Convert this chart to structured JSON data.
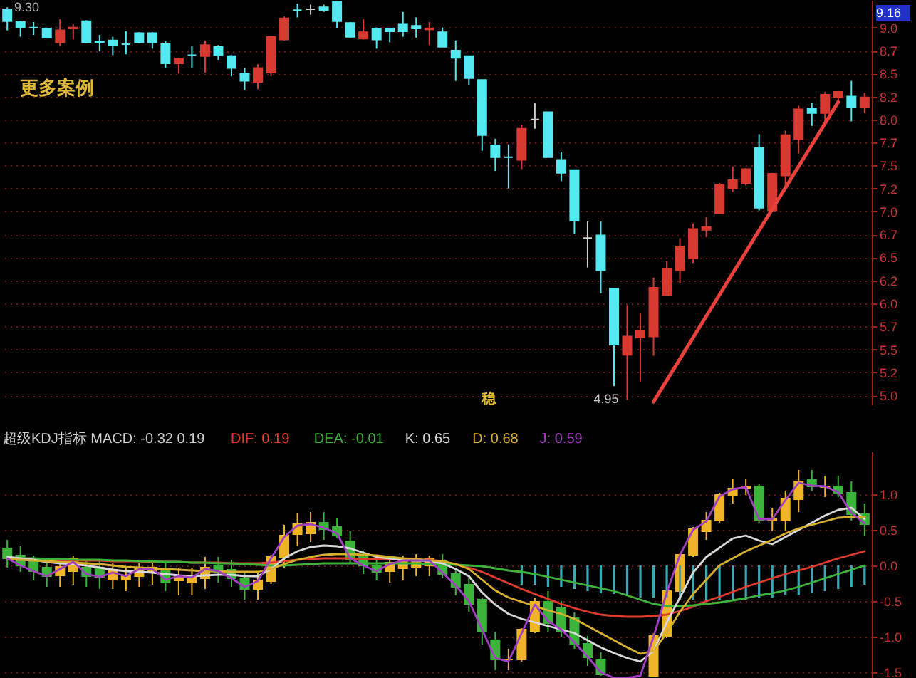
{
  "chart_data": [
    {
      "type": "candlestick",
      "categories": [
        null,
        null,
        null,
        null,
        null,
        null,
        null,
        null,
        null,
        null,
        null,
        null,
        null,
        null,
        null,
        null,
        null,
        null,
        null,
        null,
        null,
        null,
        null,
        null,
        null,
        null,
        null,
        null,
        null,
        null,
        null,
        null,
        null,
        null,
        null,
        null,
        null,
        null,
        null,
        null,
        null,
        null,
        null,
        null,
        null,
        null,
        null,
        null,
        null,
        null,
        null,
        null,
        null,
        null,
        null,
        null,
        null,
        null,
        null,
        null,
        null,
        null,
        null,
        null,
        null,
        null
      ],
      "ohlc": [
        [
          9.2,
          9.22,
          8.97,
          9.07
        ],
        [
          9.06,
          9.07,
          8.9,
          9.0
        ],
        [
          9.0,
          9.06,
          8.92,
          9.0
        ],
        [
          8.99,
          9.0,
          8.88,
          8.89
        ],
        [
          8.84,
          9.09,
          8.8,
          8.97
        ],
        [
          8.99,
          9.04,
          8.87,
          9.0
        ],
        [
          9.07,
          9.08,
          8.83,
          8.84
        ],
        [
          8.85,
          8.92,
          8.74,
          8.84
        ],
        [
          8.86,
          8.9,
          8.7,
          8.81
        ],
        [
          8.82,
          8.96,
          8.71,
          8.82
        ],
        [
          8.94,
          8.95,
          8.83,
          8.84
        ],
        [
          8.94,
          8.95,
          8.77,
          8.84
        ],
        [
          8.82,
          8.85,
          8.56,
          8.61
        ],
        [
          8.61,
          8.67,
          8.5,
          8.66
        ],
        [
          8.7,
          8.8,
          8.56,
          8.7
        ],
        [
          8.69,
          8.86,
          8.51,
          8.81
        ],
        [
          8.79,
          8.81,
          8.65,
          8.7
        ],
        [
          8.69,
          8.7,
          8.47,
          8.56
        ],
        [
          8.5,
          8.56,
          8.32,
          8.42
        ],
        [
          8.41,
          8.6,
          8.33,
          8.56
        ],
        [
          8.51,
          8.9,
          8.47,
          8.9
        ],
        [
          8.87,
          9.12,
          8.86,
          9.1
        ],
        [
          9.19,
          9.26,
          9.11,
          9.19
        ],
        [
          9.2,
          9.25,
          9.14,
          9.2
        ],
        [
          9.22,
          9.25,
          9.17,
          9.19
        ],
        [
          9.28,
          9.29,
          8.99,
          9.07
        ],
        [
          9.05,
          9.06,
          8.89,
          8.9
        ],
        [
          8.88,
          9.09,
          8.87,
          8.95
        ],
        [
          8.99,
          9.0,
          8.77,
          8.87
        ],
        [
          8.99,
          9.0,
          8.84,
          8.96
        ],
        [
          9.04,
          9.17,
          8.9,
          8.96
        ],
        [
          9.02,
          9.11,
          8.89,
          8.99
        ],
        [
          8.98,
          9.06,
          8.81,
          8.99
        ],
        [
          8.95,
          9.0,
          8.79,
          8.79
        ],
        [
          8.75,
          8.86,
          8.42,
          8.67
        ],
        [
          8.69,
          8.69,
          8.37,
          8.45
        ],
        [
          8.43,
          8.43,
          7.66,
          7.83
        ],
        [
          7.72,
          7.79,
          7.44,
          7.59
        ],
        [
          7.59,
          7.73,
          7.25,
          7.59
        ],
        [
          7.56,
          7.94,
          7.46,
          7.9
        ],
        [
          8.0,
          8.18,
          7.9,
          8.0
        ],
        [
          8.08,
          8.08,
          7.59,
          7.59
        ],
        [
          7.56,
          7.65,
          7.33,
          7.42
        ],
        [
          7.45,
          7.45,
          6.76,
          6.9
        ],
        [
          6.71,
          6.89,
          6.39,
          6.71
        ],
        [
          6.74,
          6.89,
          6.11,
          6.36
        ],
        [
          6.16,
          6.16,
          5.1,
          5.55
        ],
        [
          5.44,
          5.98,
          4.95,
          5.64
        ],
        [
          5.63,
          5.89,
          5.15,
          5.7
        ],
        [
          5.64,
          6.28,
          5.43,
          6.17
        ],
        [
          6.09,
          6.46,
          6.09,
          6.38
        ],
        [
          6.36,
          6.71,
          6.22,
          6.62
        ],
        [
          6.49,
          6.87,
          6.44,
          6.81
        ],
        [
          6.8,
          6.94,
          6.72,
          6.83
        ],
        [
          6.98,
          7.31,
          6.98,
          7.29
        ],
        [
          7.25,
          7.49,
          7.21,
          7.34
        ],
        [
          7.31,
          7.47,
          7.28,
          7.46
        ],
        [
          7.69,
          7.84,
          7.01,
          7.04
        ],
        [
          7.01,
          7.42,
          7.0,
          7.41
        ],
        [
          7.39,
          7.88,
          7.28,
          7.83
        ],
        [
          7.79,
          8.15,
          7.63,
          8.11
        ],
        [
          8.12,
          8.18,
          7.93,
          8.07
        ],
        [
          8.07,
          8.3,
          7.95,
          8.27
        ],
        [
          8.24,
          8.31,
          8.18,
          8.3
        ],
        [
          8.25,
          8.42,
          7.98,
          8.13
        ],
        [
          8.13,
          8.29,
          8.07,
          8.24
        ]
      ],
      "colors": [
        "#54e8f0",
        "#54e8f0",
        "#54e8f0",
        "#54e8f0",
        "#d83a32",
        "#d83a32",
        "#54e8f0",
        "#54e8f0",
        "#54e8f0",
        "#54e8f0",
        "#54e8f0",
        "#54e8f0",
        "#54e8f0",
        "#d83a32",
        "#54e8f0",
        "#d83a32",
        "#54e8f0",
        "#54e8f0",
        "#54e8f0",
        "#d83a32",
        "#d83a32",
        "#d83a32",
        "#54e8f0",
        "#d0d0d0",
        "#54e8f0",
        "#54e8f0",
        "#54e8f0",
        "#d83a32",
        "#54e8f0",
        "#54e8f0",
        "#54e8f0",
        "#54e8f0",
        "#d83a32",
        "#54e8f0",
        "#54e8f0",
        "#54e8f0",
        "#54e8f0",
        "#54e8f0",
        "#54e8f0",
        "#d83a32",
        "#d0d0d0",
        "#54e8f0",
        "#54e8f0",
        "#54e8f0",
        "#d0d0d0",
        "#54e8f0",
        "#54e8f0",
        "#d83a32",
        "#d83a32",
        "#d83a32",
        "#d83a32",
        "#d83a32",
        "#d83a32",
        "#d83a32",
        "#d83a32",
        "#d83a32",
        "#d83a32",
        "#54e8f0",
        "#d83a32",
        "#d83a32",
        "#d83a32",
        "#54e8f0",
        "#d83a32",
        "#d83a32",
        "#54e8f0",
        "#d83a32"
      ],
      "series": [
        {
          "type": "line",
          "color": "#e8413c",
          "values": [
            null,
            null,
            null,
            null,
            null,
            null,
            null,
            null,
            null,
            null,
            null,
            null,
            null,
            null,
            null,
            null,
            null,
            null,
            null,
            null,
            null,
            null,
            null,
            null,
            null,
            null,
            null,
            null,
            null,
            null,
            null,
            null,
            null,
            null,
            null,
            null,
            null,
            null,
            null,
            null,
            null,
            null,
            null,
            null,
            null,
            null,
            null,
            null,
            null,
            4.93,
            null,
            null,
            null,
            null,
            null,
            null,
            null,
            null,
            null,
            null,
            null,
            null,
            null,
            8.19,
            null,
            null
          ]
        }
      ],
      "ylim": [
        4.9,
        9.3
      ],
      "yticks": [
        {
          "value": 9.0,
          "label": "9.0"
        },
        {
          "value": 8.75,
          "label": "8.7"
        },
        {
          "value": 8.5,
          "label": "8.5"
        },
        {
          "value": 8.25,
          "label": "8.2"
        },
        {
          "value": 8.0,
          "label": "8.0"
        },
        {
          "value": 7.75,
          "label": "7.7"
        },
        {
          "value": 7.5,
          "label": "7.5"
        },
        {
          "value": 7.25,
          "label": "7.2"
        },
        {
          "value": 7.0,
          "label": "7.0"
        },
        {
          "value": 6.75,
          "label": "6.7"
        },
        {
          "value": 6.5,
          "label": "6.5"
        },
        {
          "value": 6.25,
          "label": "6.2"
        },
        {
          "value": 6.0,
          "label": "6.0"
        },
        {
          "value": 5.75,
          "label": "5.7"
        },
        {
          "value": 5.5,
          "label": "5.5"
        },
        {
          "value": 5.25,
          "label": "5.2"
        },
        {
          "value": 5.0,
          "label": "5.0"
        }
      ],
      "grid": "y",
      "annotations": [
        "更多案例",
        "9.30",
        "9.16",
        "4.95",
        "稳"
      ]
    },
    {
      "type": "candlestick",
      "title": "超级KDJ指标 MACD: -0.32 0.19",
      "categories": [
        null,
        null,
        null,
        null,
        null,
        null,
        null,
        null,
        null,
        null,
        null,
        null,
        null,
        null,
        null,
        null,
        null,
        null,
        null,
        null,
        null,
        null,
        null,
        null,
        null,
        null,
        null,
        null,
        null,
        null,
        null,
        null,
        null,
        null,
        null,
        null,
        null,
        null,
        null,
        null,
        null,
        null,
        null,
        null,
        null,
        null,
        null,
        null,
        null,
        null,
        null,
        null,
        null,
        null,
        null,
        null,
        null,
        null,
        null,
        null,
        null,
        null,
        null,
        null,
        null,
        null
      ],
      "ohlc": [
        [
          0.24,
          0.36,
          -0.03,
          0.1
        ],
        [
          0.14,
          0.27,
          -0.09,
          0.0
        ],
        [
          0.06,
          0.14,
          -0.21,
          -0.08
        ],
        [
          -0.03,
          0.06,
          -0.3,
          -0.15
        ],
        [
          -0.14,
          0.06,
          -0.3,
          -0.02
        ],
        [
          -0.08,
          0.14,
          -0.27,
          0.09
        ],
        [
          -0.03,
          0.09,
          -0.3,
          -0.15
        ],
        [
          -0.03,
          0.06,
          -0.33,
          -0.16
        ],
        [
          -0.2,
          0.03,
          -0.33,
          -0.06
        ],
        [
          -0.2,
          -0.04,
          -0.36,
          -0.15
        ],
        [
          -0.15,
          0.03,
          -0.3,
          -0.03
        ],
        [
          -0.09,
          0.08,
          -0.27,
          -0.03
        ],
        [
          -0.08,
          0.06,
          -0.36,
          -0.24
        ],
        [
          -0.21,
          -0.03,
          -0.42,
          -0.15
        ],
        [
          -0.24,
          -0.03,
          -0.42,
          -0.15
        ],
        [
          -0.18,
          0.12,
          -0.33,
          -0.03
        ],
        [
          0.0,
          0.12,
          -0.24,
          -0.09
        ],
        [
          -0.06,
          0.08,
          -0.3,
          -0.18
        ],
        [
          -0.18,
          -0.09,
          -0.48,
          -0.33
        ],
        [
          -0.33,
          -0.09,
          -0.48,
          -0.21
        ],
        [
          -0.22,
          0.15,
          -0.26,
          0.12
        ],
        [
          0.12,
          0.57,
          -0.03,
          0.42
        ],
        [
          0.44,
          0.74,
          0.27,
          0.58
        ],
        [
          0.45,
          0.75,
          0.33,
          0.6
        ],
        [
          0.6,
          0.75,
          0.36,
          0.51
        ],
        [
          0.54,
          0.66,
          0.38,
          0.42
        ],
        [
          0.34,
          0.48,
          0.03,
          0.08
        ],
        [
          0.12,
          0.21,
          -0.12,
          0.0
        ],
        [
          0.0,
          0.09,
          -0.21,
          -0.09
        ],
        [
          -0.08,
          0.12,
          -0.24,
          0.04
        ],
        [
          -0.04,
          0.14,
          -0.21,
          0.09
        ],
        [
          -0.03,
          0.16,
          -0.15,
          0.08
        ],
        [
          0.0,
          0.14,
          -0.15,
          0.09
        ],
        [
          0.06,
          0.16,
          -0.18,
          -0.12
        ],
        [
          -0.12,
          -0.03,
          -0.42,
          -0.3
        ],
        [
          -0.27,
          -0.18,
          -0.65,
          -0.54
        ],
        [
          -0.48,
          -0.45,
          -1.11,
          -0.93
        ],
        [
          -1.05,
          -0.93,
          -1.47,
          -1.32
        ],
        [
          -1.32,
          -1.17,
          -1.47,
          -1.32
        ],
        [
          -1.32,
          -0.88,
          -1.35,
          -0.9
        ],
        [
          -0.92,
          -0.45,
          -0.95,
          -0.51
        ],
        [
          -0.51,
          -0.36,
          -0.93,
          -0.81
        ],
        [
          -0.6,
          -0.5,
          -1.0,
          -0.93
        ],
        [
          -0.74,
          -0.66,
          -1.17,
          -1.11
        ],
        [
          -1.1,
          -0.99,
          -1.41,
          -1.29
        ],
        [
          -1.32,
          -1.22,
          -1.55,
          -1.53
        ],
        null,
        null,
        null,
        [
          -1.55,
          -0.95,
          -1.55,
          -0.99
        ],
        [
          -0.99,
          -0.33,
          -1.02,
          -0.36
        ],
        [
          -0.36,
          0.18,
          -0.4,
          0.15
        ],
        [
          0.15,
          0.54,
          0.12,
          0.51
        ],
        [
          0.48,
          0.75,
          0.36,
          0.63
        ],
        [
          0.63,
          1.02,
          0.6,
          0.99
        ],
        [
          0.99,
          1.22,
          0.87,
          1.08
        ],
        [
          1.08,
          1.22,
          0.99,
          1.11
        ],
        [
          1.11,
          1.14,
          0.6,
          0.63
        ],
        [
          0.63,
          0.81,
          0.48,
          0.66
        ],
        [
          0.63,
          1.05,
          0.48,
          0.94
        ],
        [
          0.93,
          1.34,
          0.75,
          1.18
        ],
        [
          1.2,
          1.34,
          1.05,
          1.11
        ],
        [
          1.1,
          1.26,
          0.96,
          1.11
        ],
        [
          1.11,
          1.26,
          0.96,
          1.02
        ],
        [
          1.02,
          1.18,
          0.63,
          0.72
        ],
        [
          0.72,
          0.87,
          0.42,
          0.58
        ]
      ],
      "colors": [
        "#3cb43c",
        "#3cb43c",
        "#3cb43c",
        "#3cb43c",
        "#f0b428",
        "#f0b428",
        "#3cb43c",
        "#3cb43c",
        "#f0b428",
        "#f0b428",
        "#f0b428",
        "#f0b428",
        "#3cb43c",
        "#f0b428",
        "#f0b428",
        "#f0b428",
        "#3cb43c",
        "#3cb43c",
        "#3cb43c",
        "#f0b428",
        "#f0b428",
        "#f0b428",
        "#f0b428",
        "#f0b428",
        "#3cb43c",
        "#3cb43c",
        "#3cb43c",
        "#3cb43c",
        "#3cb43c",
        "#f0b428",
        "#f0b428",
        "#f0b428",
        "#f0b428",
        "#3cb43c",
        "#3cb43c",
        "#3cb43c",
        "#3cb43c",
        "#3cb43c",
        "#f0b428",
        "#f0b428",
        "#f0b428",
        "#3cb43c",
        "#3cb43c",
        "#3cb43c",
        "#3cb43c",
        "#3cb43c",
        null,
        null,
        null,
        "#f0b428",
        "#f0b428",
        "#f0b428",
        "#f0b428",
        "#f0b428",
        "#f0b428",
        "#f0b428",
        "#f0b428",
        "#3cb43c",
        "#f0b428",
        "#f0b428",
        "#f0b428",
        "#3cb43c",
        "#f0b428",
        "#3cb43c",
        "#3cb43c",
        "#3cb43c"
      ],
      "series": [
        {
          "type": "bar",
          "color": "#3aa8b8",
          "values": [
            null,
            null,
            null,
            null,
            null,
            null,
            null,
            null,
            null,
            null,
            null,
            null,
            null,
            null,
            null,
            null,
            null,
            null,
            null,
            null,
            null,
            null,
            null,
            null,
            null,
            null,
            null,
            null,
            null,
            null,
            null,
            null,
            null,
            null,
            null,
            null,
            null,
            null,
            null,
            -0.27,
            -0.27,
            -0.3,
            -0.3,
            -0.33,
            -0.36,
            -0.39,
            -0.4,
            -0.42,
            -0.45,
            -0.45,
            -0.45,
            -0.48,
            -0.48,
            -0.48,
            -0.48,
            -0.48,
            -0.48,
            -0.45,
            -0.45,
            -0.42,
            -0.42,
            -0.39,
            -0.36,
            -0.33,
            -0.3,
            -0.27
          ]
        },
        {
          "type": "line",
          "name": "DIF: 0.19",
          "color": "#e03c30",
          "values": [
            null,
            null,
            null,
            0.08,
            0.08,
            0.07,
            0.07,
            0.07,
            0.06,
            0.06,
            0.06,
            0.05,
            0.05,
            0.05,
            0.04,
            0.04,
            0.04,
            0.03,
            0.03,
            0.03,
            0.04,
            0.06,
            0.08,
            0.09,
            0.1,
            0.1,
            0.1,
            0.09,
            0.09,
            0.09,
            0.09,
            0.08,
            0.08,
            0.06,
            0.02,
            -0.03,
            -0.09,
            -0.17,
            -0.25,
            -0.33,
            -0.4,
            -0.47,
            -0.54,
            -0.6,
            -0.65,
            -0.69,
            -0.71,
            -0.72,
            -0.72,
            -0.71,
            -0.69,
            -0.64,
            -0.58,
            -0.5,
            -0.44,
            -0.37,
            -0.3,
            -0.24,
            -0.18,
            -0.12,
            -0.07,
            -0.02,
            0.04,
            0.1,
            0.15,
            0.2
          ]
        },
        {
          "type": "line",
          "name": "DEA: -0.01",
          "color": "#3cb43c",
          "values": [
            0.1,
            0.1,
            0.1,
            0.09,
            0.09,
            0.08,
            0.08,
            0.08,
            0.07,
            0.07,
            0.06,
            0.06,
            0.05,
            0.05,
            0.04,
            0.04,
            0.03,
            0.03,
            0.02,
            0.01,
            0.0,
            0.0,
            0.01,
            0.02,
            0.03,
            0.03,
            0.03,
            0.03,
            0.03,
            0.03,
            0.03,
            0.03,
            0.02,
            0.02,
            0.01,
            0.0,
            -0.01,
            -0.04,
            -0.07,
            -0.09,
            -0.12,
            -0.16,
            -0.2,
            -0.24,
            -0.28,
            -0.32,
            -0.36,
            -0.42,
            -0.48,
            -0.54,
            -0.57,
            -0.57,
            -0.56,
            -0.54,
            -0.52,
            -0.49,
            -0.46,
            -0.42,
            -0.39,
            -0.35,
            -0.3,
            -0.24,
            -0.18,
            -0.12,
            -0.06,
            0.0
          ]
        },
        {
          "type": "line",
          "name": "K: 0.65",
          "color": "#d8d8d8",
          "values": [
            0.12,
            0.1,
            0.08,
            0.05,
            0.03,
            0.02,
            0.0,
            -0.03,
            -0.06,
            -0.08,
            -0.09,
            -0.1,
            -0.12,
            -0.14,
            -0.15,
            -0.14,
            -0.13,
            -0.13,
            -0.15,
            -0.15,
            -0.05,
            0.1,
            0.2,
            0.26,
            0.28,
            0.27,
            0.24,
            0.18,
            0.12,
            0.1,
            0.08,
            0.07,
            0.06,
            0.03,
            -0.05,
            -0.15,
            -0.38,
            -0.55,
            -0.68,
            -0.75,
            -0.8,
            -0.85,
            -0.9,
            -0.95,
            -1.05,
            -1.15,
            -1.23,
            -1.3,
            -1.35,
            -1.2,
            -0.8,
            -0.45,
            -0.1,
            0.12,
            0.25,
            0.38,
            0.42,
            0.35,
            0.3,
            0.4,
            0.5,
            0.6,
            0.7,
            0.78,
            0.81,
            0.65
          ]
        },
        {
          "type": "line",
          "name": "D: 0.68",
          "color": "#d8b030",
          "values": [
            0.09,
            0.08,
            0.07,
            0.06,
            0.05,
            0.04,
            0.03,
            0.02,
            0.0,
            -0.02,
            -0.03,
            -0.04,
            -0.05,
            -0.06,
            -0.07,
            -0.08,
            -0.08,
            -0.09,
            -0.09,
            -0.09,
            -0.05,
            0.02,
            0.08,
            0.12,
            0.15,
            0.16,
            0.16,
            0.15,
            0.14,
            0.12,
            0.1,
            0.09,
            0.07,
            0.06,
            0.02,
            -0.05,
            -0.2,
            -0.35,
            -0.45,
            -0.51,
            -0.57,
            -0.63,
            -0.68,
            -0.75,
            -0.85,
            -0.95,
            -1.05,
            -1.15,
            -1.24,
            -1.2,
            -0.95,
            -0.65,
            -0.4,
            -0.2,
            0.0,
            0.1,
            0.2,
            0.28,
            0.36,
            0.45,
            0.52,
            0.57,
            0.62,
            0.67,
            0.68,
            0.68
          ]
        },
        {
          "type": "line",
          "name": "J: 0.59",
          "color": "#a040c0",
          "values": [
            0.1,
            0.0,
            -0.08,
            -0.15,
            -0.05,
            0.05,
            -0.12,
            -0.16,
            -0.1,
            -0.15,
            -0.05,
            -0.05,
            -0.2,
            -0.15,
            -0.17,
            -0.05,
            -0.08,
            -0.18,
            -0.3,
            -0.22,
            0.1,
            0.4,
            0.56,
            0.58,
            0.53,
            0.45,
            0.1,
            0.0,
            -0.08,
            0.02,
            0.07,
            0.07,
            0.07,
            -0.1,
            -0.28,
            -0.5,
            -0.9,
            -1.3,
            -1.35,
            -0.95,
            -0.55,
            -0.78,
            -0.9,
            -1.08,
            -1.28,
            -1.5,
            -1.58,
            -1.58,
            -1.55,
            -1.0,
            -0.38,
            0.15,
            0.5,
            0.62,
            0.97,
            1.07,
            1.1,
            0.65,
            0.65,
            0.92,
            1.16,
            1.12,
            1.11,
            1.03,
            0.74,
            0.59
          ]
        }
      ],
      "ylim": [
        -1.6,
        1.6
      ],
      "yticks": [
        {
          "value": 1.0,
          "label": "1.0"
        },
        {
          "value": 0.5,
          "label": "0.5"
        },
        {
          "value": 0,
          "label": "0.0"
        },
        {
          "value": -0.5,
          "label": "-0.5"
        },
        {
          "value": -1.0,
          "label": "-1.0"
        },
        {
          "value": -1.5,
          "label": "-1.5"
        }
      ],
      "grid": "y"
    }
  ]
}
